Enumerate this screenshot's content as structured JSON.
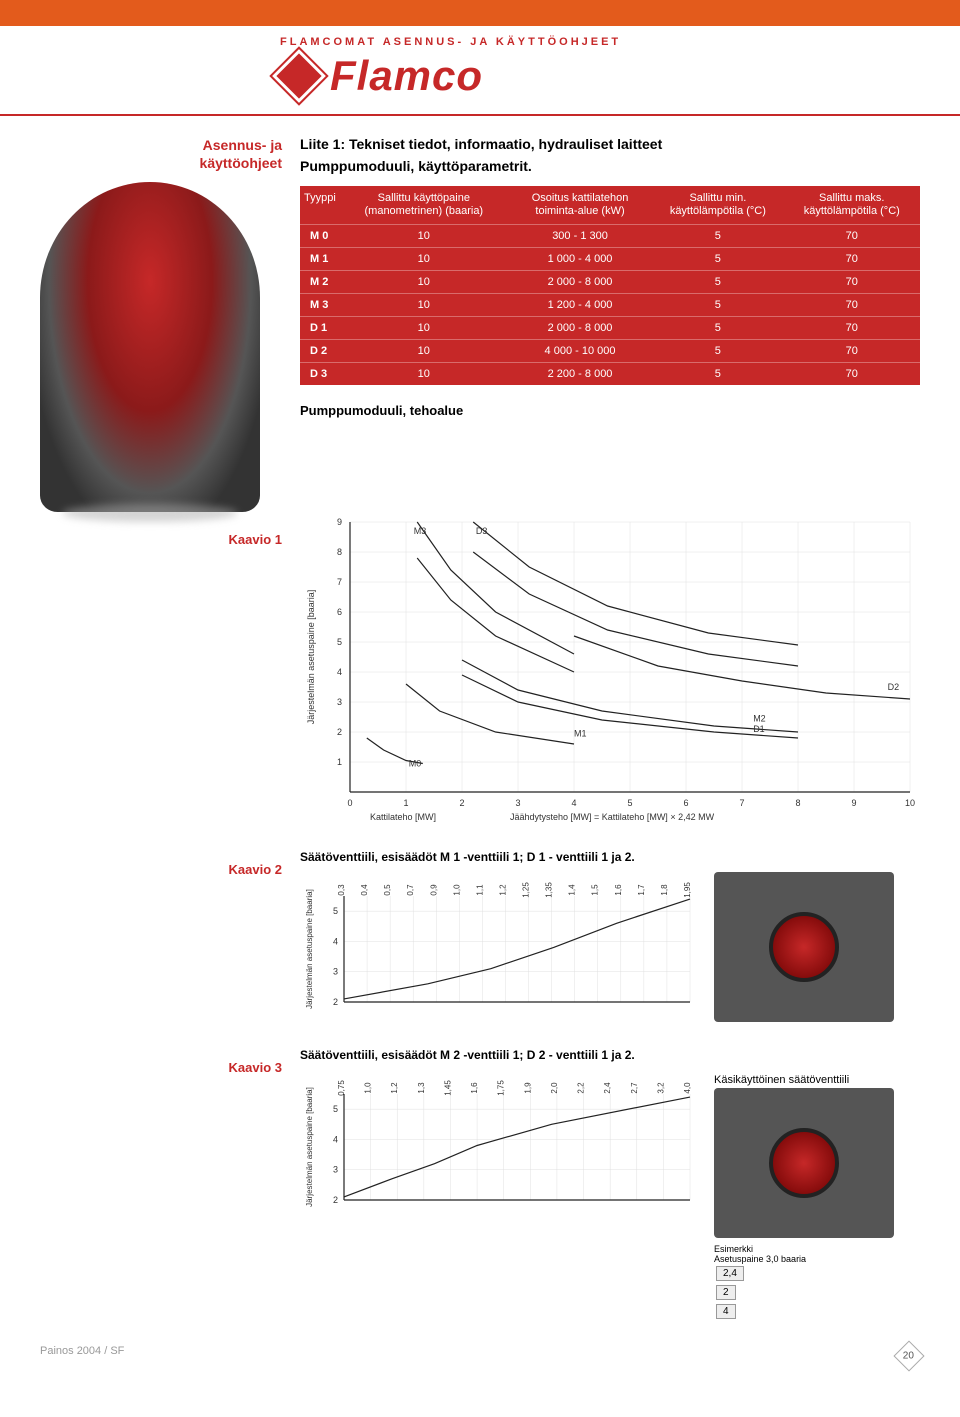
{
  "header": {
    "subtitle": "FLAMCOMAT ASENNUS- JA KÄYTTÖOHJEET",
    "brand": "Flamco"
  },
  "sidebar": {
    "title_line1": "Asennus- ja",
    "title_line2": "käyttöohjeet",
    "kaavio1": "Kaavio 1",
    "kaavio2": "Kaavio 2",
    "kaavio3": "Kaavio 3"
  },
  "intro": {
    "title": "Liite 1: Tekniset tiedot, informaatio, hydrauliset laitteet",
    "subtitle": "Pumppumoduuli, käyttöparametrit."
  },
  "spec_table": {
    "headers": [
      "Tyyppi",
      "Sallittu käyttöpaine (manometrinen) (baaria)",
      "Osoitus kattilatehon toiminta-alue (kW)",
      "Sallittu min. käyttölämpötila (°C)",
      "Sallittu maks. käyttölämpötila (°C)"
    ],
    "rows": [
      [
        "M 0",
        "10",
        "300 - 1 300",
        "5",
        "70"
      ],
      [
        "M 1",
        "10",
        "1 000 - 4 000",
        "5",
        "70"
      ],
      [
        "M 2",
        "10",
        "2 000 - 8 000",
        "5",
        "70"
      ],
      [
        "M 3",
        "10",
        "1 200 - 4 000",
        "5",
        "70"
      ],
      [
        "D 1",
        "10",
        "2 000 - 8 000",
        "5",
        "70"
      ],
      [
        "D 2",
        "10",
        "4 000 - 10 000",
        "5",
        "70"
      ],
      [
        "D 3",
        "10",
        "2 200 - 8 000",
        "5",
        "70"
      ]
    ]
  },
  "section2_title": "Pumppumoduuli, tehoalue",
  "chart1": {
    "type": "line",
    "xlim": [
      0,
      10
    ],
    "ylim": [
      0,
      9
    ],
    "xticks": [
      0,
      1,
      2,
      3,
      4,
      5,
      6,
      7,
      8,
      9,
      10
    ],
    "yticks": [
      1,
      2,
      3,
      4,
      5,
      6,
      7,
      8,
      9
    ],
    "xlabel_left": "Kattilateho [MW]",
    "xlabel_right": "Jäähdytysteho [MW] = Kattilateho [MW] × 2,42  MW",
    "ylabel": "Järjestelmän asetuspaine [baaria]",
    "series_labels": {
      "M0": "M0",
      "M1": "M1",
      "M2": "M2",
      "D1": "D1",
      "D2": "D2",
      "M3": "M3",
      "D3": "D3"
    },
    "background": "#ffffff",
    "grid_color": "#e8e8e8",
    "line_color": "#222222",
    "curves": {
      "M0": [
        [
          0.3,
          1.8
        ],
        [
          0.6,
          1.4
        ],
        [
          1.0,
          1.05
        ],
        [
          1.3,
          0.95
        ]
      ],
      "M1": [
        [
          1.0,
          3.6
        ],
        [
          1.6,
          2.7
        ],
        [
          2.6,
          2.0
        ],
        [
          4.0,
          1.6
        ]
      ],
      "M2": [
        [
          2.0,
          4.4
        ],
        [
          3.0,
          3.4
        ],
        [
          4.5,
          2.7
        ],
        [
          6.5,
          2.2
        ],
        [
          8.0,
          2.0
        ]
      ],
      "D1": [
        [
          2.0,
          3.9
        ],
        [
          3.0,
          3.0
        ],
        [
          4.5,
          2.4
        ],
        [
          6.5,
          2.0
        ],
        [
          8.0,
          1.8
        ]
      ],
      "D2": [
        [
          4.0,
          5.2
        ],
        [
          5.5,
          4.2
        ],
        [
          7.0,
          3.7
        ],
        [
          8.5,
          3.3
        ],
        [
          10.0,
          3.1
        ]
      ],
      "M3_hi": [
        [
          1.2,
          9.0
        ],
        [
          1.8,
          7.4
        ],
        [
          2.6,
          6.0
        ],
        [
          4.0,
          4.6
        ]
      ],
      "M3_lo": [
        [
          1.2,
          7.8
        ],
        [
          1.8,
          6.4
        ],
        [
          2.6,
          5.2
        ],
        [
          4.0,
          4.0
        ]
      ],
      "D3_hi": [
        [
          2.2,
          9.0
        ],
        [
          3.2,
          7.5
        ],
        [
          4.6,
          6.2
        ],
        [
          6.4,
          5.3
        ],
        [
          8.0,
          4.9
        ]
      ],
      "D3_lo": [
        [
          2.2,
          8.0
        ],
        [
          3.2,
          6.6
        ],
        [
          4.6,
          5.4
        ],
        [
          6.4,
          4.6
        ],
        [
          8.0,
          4.2
        ]
      ]
    }
  },
  "chart2": {
    "caption": "Säätöventtiili, esisäädöt M 1 -venttiili 1; D 1 - venttiili 1 ja 2.",
    "type": "line",
    "xlim": [
      0.3,
      1.95
    ],
    "ylim": [
      2,
      5.5
    ],
    "xticks": [
      "0,3",
      "0,4",
      "0,5",
      "0,7",
      "0,9",
      "1,0",
      "1,1",
      "1,2",
      "1,25",
      "1,35",
      "1,4",
      "1,5",
      "1,6",
      "1,7",
      "1,8",
      "1,95"
    ],
    "yticks": [
      2,
      3,
      4,
      5
    ],
    "ylabel": "Järjestelmän asetuspaine [baaria]",
    "curve": [
      [
        0.3,
        2.1
      ],
      [
        0.7,
        2.6
      ],
      [
        1.0,
        3.1
      ],
      [
        1.3,
        3.8
      ],
      [
        1.6,
        4.6
      ],
      [
        1.95,
        5.4
      ]
    ],
    "background": "#ffffff",
    "grid_color": "#e8e8e8",
    "line_color": "#222222"
  },
  "chart3": {
    "caption": "Säätöventtiili, esisäädöt M 2 -venttiili 1; D 2 - venttiili 1 ja 2.",
    "side_caption": "Käsikäyttöinen säätöventtiili",
    "type": "line",
    "xlim": [
      0.75,
      4.0
    ],
    "ylim": [
      2,
      5.5
    ],
    "xticks": [
      "0,75",
      "1,0",
      "1,2",
      "1,3",
      "1,45",
      "1,6",
      "1,75",
      "1,9",
      "2,0",
      "2,2",
      "2,4",
      "2,7",
      "3,2",
      "4,0"
    ],
    "yticks": [
      2,
      3,
      4,
      5
    ],
    "ylabel": "Järjestelmän asetuspaine [baaria]",
    "curve": [
      [
        0.75,
        2.1
      ],
      [
        1.2,
        2.7
      ],
      [
        1.6,
        3.2
      ],
      [
        2.0,
        3.8
      ],
      [
        2.7,
        4.5
      ],
      [
        4.0,
        5.4
      ]
    ],
    "example": {
      "label": "Esimerkki",
      "sub": "Asetuspaine 3,0 baaria",
      "vals": [
        "2,4",
        "2",
        "4"
      ]
    },
    "background": "#ffffff",
    "grid_color": "#e8e8e8",
    "line_color": "#222222"
  },
  "footer": {
    "edition": "Painos 2004 / SF",
    "page": "20"
  }
}
